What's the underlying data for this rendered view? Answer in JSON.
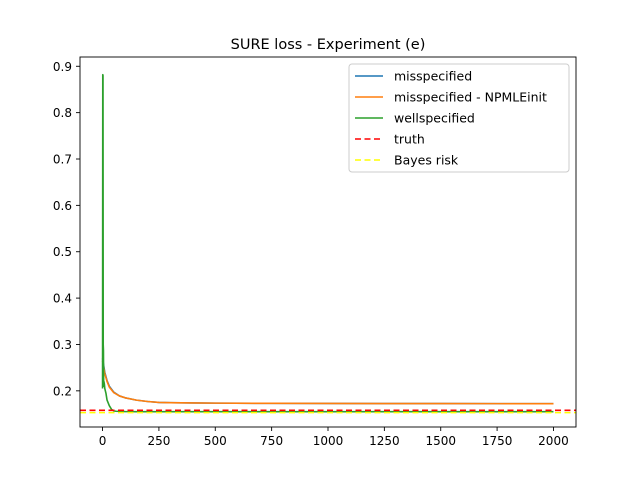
{
  "chart_data": {
    "type": "line",
    "title": "SURE loss - Experiment (e)",
    "xlabel": "",
    "ylabel": "",
    "xlim": [
      -100,
      2100
    ],
    "ylim": [
      0.122,
      0.92
    ],
    "x_ticks": [
      0,
      250,
      500,
      750,
      1000,
      1250,
      1500,
      1750,
      2000
    ],
    "y_ticks": [
      0.2,
      0.3,
      0.4,
      0.5,
      0.6,
      0.7,
      0.8,
      0.9
    ],
    "grid": false,
    "legend_position": "top-right",
    "series": [
      {
        "name": "misspecified",
        "color": "#1f77b4",
        "style": "solid",
        "x": [
          0,
          5,
          10,
          20,
          30,
          50,
          75,
          100,
          150,
          200,
          250,
          300,
          400,
          500,
          750,
          1000,
          1250,
          1500,
          1750,
          2000
        ],
        "y": [
          0.27,
          0.255,
          0.24,
          0.222,
          0.21,
          0.197,
          0.189,
          0.185,
          0.18,
          0.177,
          0.175,
          0.1745,
          0.174,
          0.1735,
          0.173,
          0.1728,
          0.1726,
          0.1725,
          0.1724,
          0.1723
        ]
      },
      {
        "name": "misspecified - NPMLEinit",
        "color": "#ff7f0e",
        "style": "solid",
        "x": [
          0,
          5,
          10,
          20,
          30,
          50,
          75,
          100,
          150,
          200,
          250,
          300,
          400,
          500,
          750,
          1000,
          1250,
          1500,
          1750,
          2000
        ],
        "y": [
          0.265,
          0.25,
          0.237,
          0.22,
          0.208,
          0.196,
          0.189,
          0.185,
          0.18,
          0.177,
          0.175,
          0.1745,
          0.174,
          0.1735,
          0.173,
          0.1728,
          0.1726,
          0.1725,
          0.1724,
          0.1723
        ]
      },
      {
        "name": "wellspecified",
        "color": "#2ca02c",
        "style": "solid",
        "x": [
          0,
          1,
          2,
          3,
          4,
          5,
          6,
          8,
          10,
          15,
          20,
          30,
          40,
          50,
          60,
          80,
          100,
          150,
          200,
          250,
          300,
          400,
          500,
          750,
          1000,
          1250,
          1500,
          1750,
          2000
        ],
        "y": [
          0.205,
          0.882,
          0.88,
          0.3,
          0.287,
          0.21,
          0.22,
          0.215,
          0.205,
          0.195,
          0.18,
          0.168,
          0.16,
          0.1565,
          0.156,
          0.1555,
          0.1552,
          0.155,
          0.155,
          0.155,
          0.155,
          0.155,
          0.155,
          0.155,
          0.155,
          0.155,
          0.155,
          0.155,
          0.155
        ]
      },
      {
        "name": "truth",
        "color": "#ff0000",
        "style": "dashed",
        "y_constant": 0.158
      },
      {
        "name": "Bayes risk",
        "color": "#ffff00",
        "style": "dashed",
        "y_constant": 0.153
      }
    ]
  }
}
